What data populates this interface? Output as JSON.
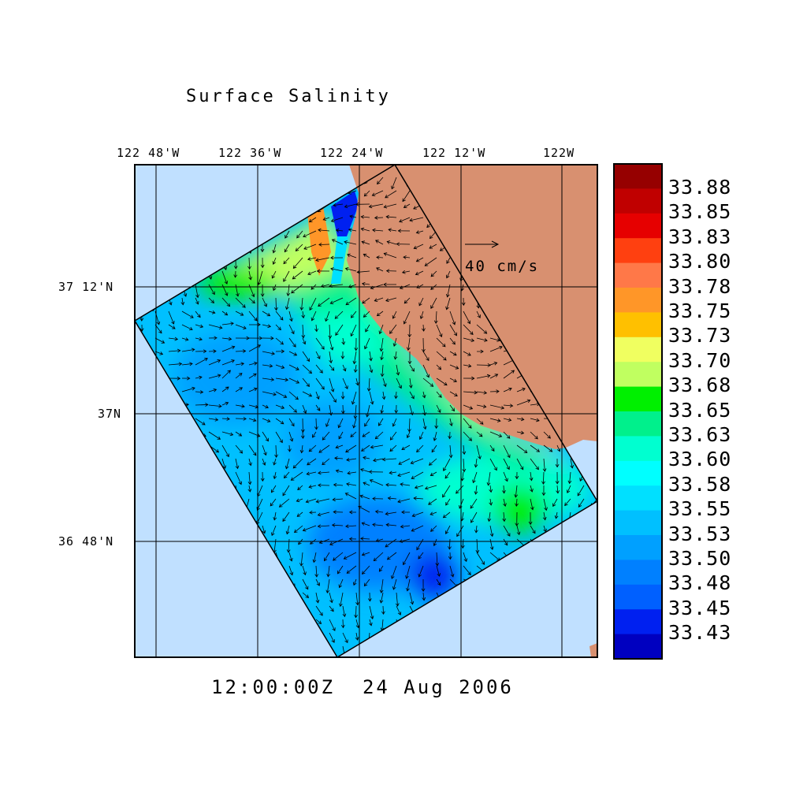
{
  "title": "Surface Salinity",
  "timestamp": "12:00:00Z  24 Aug 2006",
  "x_axis_labels": [
    "122 48'W",
    "122 36'W",
    "122 24'W",
    "122 12'W",
    "122W"
  ],
  "y_axis_labels": [
    "37 12'N",
    "37N",
    "36 48'N"
  ],
  "vector_scale_label": "40 cm/s",
  "colors": {
    "ocean": "#c0e0ff",
    "land": "#d89070",
    "domain_base": "#00c0ff"
  },
  "colorbar": {
    "labels": [
      "33.88",
      "33.85",
      "33.83",
      "33.80",
      "33.78",
      "33.75",
      "33.73",
      "33.70",
      "33.68",
      "33.65",
      "33.63",
      "33.60",
      "33.58",
      "33.55",
      "33.53",
      "33.50",
      "33.48",
      "33.45",
      "33.43"
    ],
    "colors": [
      "#960000",
      "#c00000",
      "#e60000",
      "#ff4010",
      "#ff7848",
      "#ff9628",
      "#ffc000",
      "#f0ff60",
      "#c0ff60",
      "#00f000",
      "#00f08c",
      "#00ffd0",
      "#00ffff",
      "#00e0ff",
      "#00c0ff",
      "#00a0ff",
      "#0080ff",
      "#0060ff",
      "#0020f0",
      "#0000c0"
    ]
  }
}
